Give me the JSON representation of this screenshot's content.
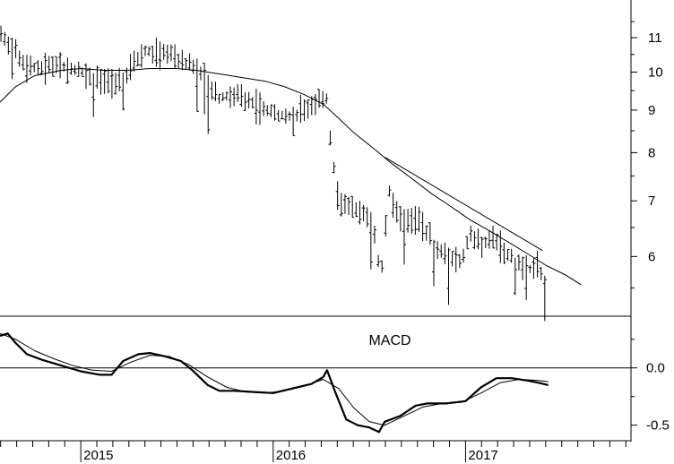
{
  "chart_data": [
    {
      "type": "ohlc",
      "panel": "price",
      "scale": "log",
      "ylim": [
        5.2,
        12.0
      ],
      "y_ticks": [
        {
          "value": 11,
          "label": "11"
        },
        {
          "value": 10,
          "label": "10"
        },
        {
          "value": 9,
          "label": "9"
        },
        {
          "value": 8,
          "label": "8"
        },
        {
          "value": 7,
          "label": "7"
        },
        {
          "value": 6,
          "label": "6"
        }
      ],
      "x_range": [
        2014.58,
        2017.86
      ],
      "x_ticks": [
        {
          "value": 2015.0,
          "label": "2015"
        },
        {
          "value": 2016.0,
          "label": "2016"
        },
        {
          "value": 2017.0,
          "label": "2017"
        }
      ],
      "price_path": [
        [
          2014.58,
          11.1
        ],
        [
          2014.66,
          10.6
        ],
        [
          2014.72,
          10.2
        ],
        [
          2014.8,
          10.1
        ],
        [
          2014.88,
          10.2
        ],
        [
          2014.96,
          10.1
        ],
        [
          2015.04,
          9.9
        ],
        [
          2015.1,
          9.8
        ],
        [
          2015.16,
          9.7
        ],
        [
          2015.22,
          9.8
        ],
        [
          2015.28,
          10.3
        ],
        [
          2015.34,
          10.6
        ],
        [
          2015.4,
          10.5
        ],
        [
          2015.46,
          10.6
        ],
        [
          2015.52,
          10.3
        ],
        [
          2015.58,
          10.2
        ],
        [
          2015.62,
          10.0
        ],
        [
          2015.66,
          9.6
        ],
        [
          2015.72,
          9.3
        ],
        [
          2015.8,
          9.4
        ],
        [
          2015.88,
          9.2
        ],
        [
          2015.96,
          9.0
        ],
        [
          2016.04,
          8.9
        ],
        [
          2016.1,
          8.8
        ],
        [
          2016.16,
          9.0
        ],
        [
          2016.22,
          9.2
        ],
        [
          2016.28,
          9.3
        ],
        [
          2016.3,
          8.2
        ],
        [
          2016.34,
          6.9
        ],
        [
          2016.4,
          6.9
        ],
        [
          2016.46,
          6.8
        ],
        [
          2016.52,
          6.6
        ],
        [
          2016.56,
          5.6
        ],
        [
          2016.6,
          7.2
        ],
        [
          2016.64,
          6.8
        ],
        [
          2016.7,
          6.6
        ],
        [
          2016.76,
          6.7
        ],
        [
          2016.8,
          6.4
        ],
        [
          2016.86,
          6.1
        ],
        [
          2016.92,
          6.0
        ],
        [
          2016.98,
          5.9
        ],
        [
          2017.02,
          6.4
        ],
        [
          2017.08,
          6.2
        ],
        [
          2017.14,
          6.3
        ],
        [
          2017.2,
          6.1
        ],
        [
          2017.26,
          5.9
        ],
        [
          2017.32,
          5.8
        ],
        [
          2017.38,
          5.8
        ],
        [
          2017.43,
          5.5
        ]
      ],
      "moving_average": [
        [
          2014.58,
          9.2
        ],
        [
          2014.66,
          9.6
        ],
        [
          2014.76,
          9.9
        ],
        [
          2014.9,
          10.05
        ],
        [
          2015.0,
          10.1
        ],
        [
          2015.12,
          10.05
        ],
        [
          2015.24,
          10.05
        ],
        [
          2015.36,
          10.1
        ],
        [
          2015.5,
          10.1
        ],
        [
          2015.6,
          10.05
        ],
        [
          2015.72,
          9.95
        ],
        [
          2015.84,
          9.85
        ],
        [
          2015.96,
          9.75
        ],
        [
          2016.06,
          9.6
        ],
        [
          2016.16,
          9.4
        ],
        [
          2016.26,
          9.15
        ],
        [
          2016.34,
          8.8
        ],
        [
          2016.42,
          8.45
        ],
        [
          2016.52,
          8.1
        ],
        [
          2016.62,
          7.75
        ],
        [
          2016.72,
          7.45
        ],
        [
          2016.82,
          7.15
        ],
        [
          2016.92,
          6.9
        ],
        [
          2017.02,
          6.65
        ],
        [
          2017.12,
          6.45
        ],
        [
          2017.22,
          6.25
        ],
        [
          2017.32,
          6.05
        ],
        [
          2017.42,
          5.85
        ],
        [
          2017.52,
          5.7
        ],
        [
          2017.6,
          5.55
        ]
      ],
      "trendline": [
        [
          2016.58,
          7.9
        ],
        [
          2017.4,
          6.1
        ]
      ]
    },
    {
      "type": "line",
      "panel": "indicator",
      "title": "MACD",
      "ylim": [
        -0.62,
        0.42
      ],
      "y_ticks": [
        {
          "value": 0.0,
          "label": "0.0"
        },
        {
          "value": -0.5,
          "label": "-0.5"
        }
      ],
      "series": [
        {
          "x": [
            2014.58,
            2014.62,
            2014.66,
            2014.72,
            2014.8,
            2014.9,
            2015.0,
            2015.1,
            2015.16,
            2015.22,
            2015.3,
            2015.36,
            2015.44,
            2015.52,
            2015.58,
            2015.66,
            2015.72,
            2015.8,
            2015.9,
            2016.0,
            2016.1,
            2016.2,
            2016.26,
            2016.28,
            2016.32,
            2016.38,
            2016.44,
            2016.5,
            2016.55,
            2016.58,
            2016.66,
            2016.74,
            2016.8,
            2016.9,
            2017.0,
            2017.08,
            2017.16,
            2017.24,
            2017.32,
            2017.38,
            2017.43
          ],
          "values": [
            0.28,
            0.3,
            0.22,
            0.12,
            0.07,
            0.02,
            -0.03,
            -0.06,
            -0.06,
            0.06,
            0.12,
            0.13,
            0.1,
            0.06,
            -0.02,
            -0.15,
            -0.2,
            -0.2,
            -0.21,
            -0.22,
            -0.18,
            -0.14,
            -0.08,
            -0.02,
            -0.2,
            -0.45,
            -0.5,
            -0.52,
            -0.56,
            -0.47,
            -0.42,
            -0.33,
            -0.31,
            -0.31,
            -0.29,
            -0.17,
            -0.09,
            -0.09,
            -0.11,
            -0.13,
            -0.15
          ]
        },
        {
          "x": [
            2014.58,
            2014.66,
            2014.76,
            2014.86,
            2014.96,
            2015.06,
            2015.16,
            2015.26,
            2015.36,
            2015.46,
            2015.56,
            2015.66,
            2015.76,
            2015.86,
            2015.96,
            2016.06,
            2016.16,
            2016.26,
            2016.34,
            2016.42,
            2016.5,
            2016.58,
            2016.68,
            2016.78,
            2016.88,
            2016.98,
            2017.08,
            2017.18,
            2017.28,
            2017.38,
            2017.43
          ],
          "values": [
            0.3,
            0.25,
            0.15,
            0.08,
            0.02,
            -0.02,
            -0.03,
            0.05,
            0.11,
            0.1,
            0.03,
            -0.08,
            -0.17,
            -0.21,
            -0.22,
            -0.2,
            -0.16,
            -0.1,
            -0.18,
            -0.35,
            -0.47,
            -0.5,
            -0.42,
            -0.34,
            -0.31,
            -0.3,
            -0.22,
            -0.13,
            -0.1,
            -0.11,
            -0.12
          ]
        }
      ]
    }
  ]
}
